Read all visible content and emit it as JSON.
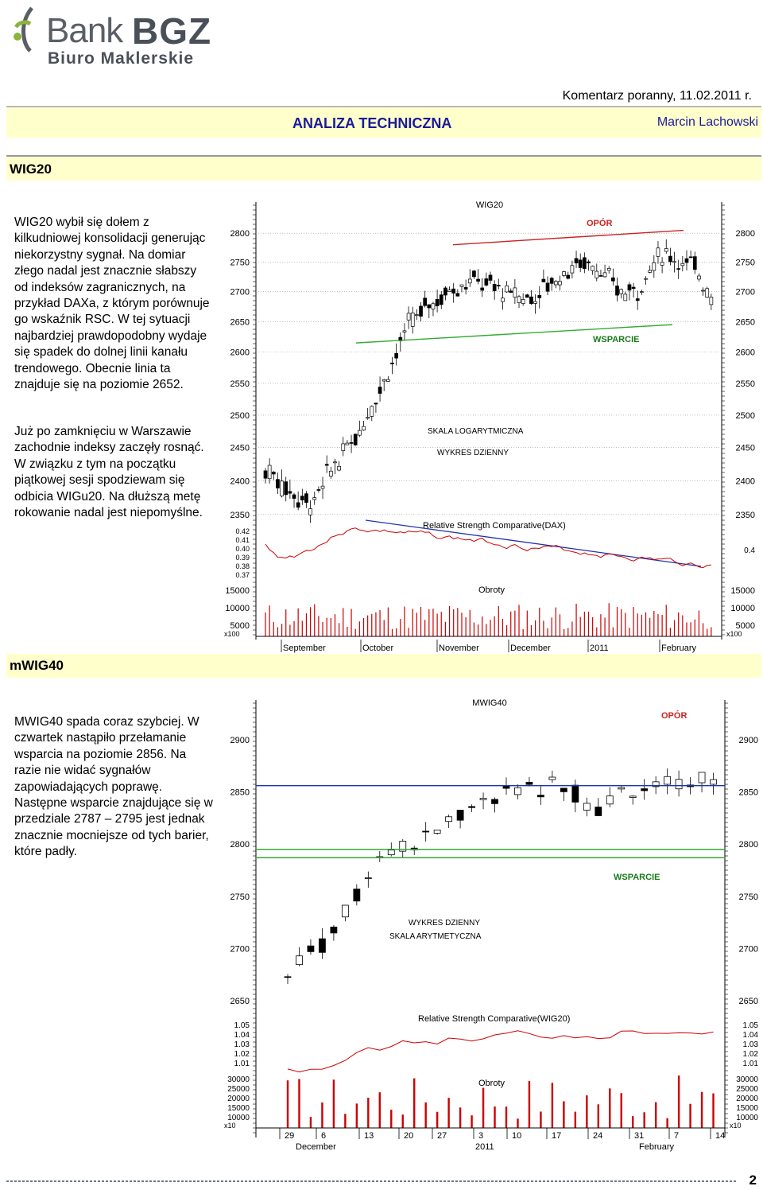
{
  "header": {
    "logo_main": "Bank",
    "logo_brand": "BGZ",
    "logo_sub": "Biuro Maklerskie",
    "comment_label": "Komentarz poranny, 11.02.2011 r.",
    "section_title": "ANALIZA TECHNICZNA",
    "author": "Marcin Lachowski",
    "accent_color": "#1a1a9c",
    "band_color": "#ffffcc"
  },
  "wig20": {
    "section_label": "WIG20",
    "paragraph1": "WIG20 wybił się dołem z kilkudniowej konsolidacji generując niekorzystny sygnał. Na domiar złego nadal jest znacznie słabszy od indeksów zagranicznych, na przykład DAXa, z którym porównuje go wskaźnik RSC. W tej sytuacji najbardziej prawdopodobny wydaje się spadek do dolnej linii kanału trendowego. Obecnie linia ta znajduje się na poziomie 2652.",
    "paragraph2": "Już po zamknięciu w Warszawie zachodnie indeksy zaczęły rosnąć. W związku z tym na początku piątkowej sesji spodziewam się odbicia WIGu20. Na dłuższą metę rokowanie nadal jest niepomyślne."
  },
  "mwig40": {
    "section_label": "mWIG40",
    "paragraph1": "MWIG40 spada coraz szybciej. W czwartek nastąpiło przełamanie wsparcia na poziomie 2856. Na razie nie widać sygnałów zapowiadających poprawę. Następne wsparcie znajdujące się w przedziale 2787 – 2795 jest jednak znacznie mocniejsze od tych barier, które padły."
  },
  "chart_data": [
    {
      "type": "candlestick",
      "title": "WIG20",
      "scale": "log",
      "price_ticks": [
        2800,
        2750,
        2700,
        2650,
        2600,
        2550,
        2500,
        2450,
        2400,
        2350
      ],
      "annotations": [
        "OPÓR",
        "WSPARCIE",
        "SKALA LOGARYTMICZNA",
        "WYKRES DZIENNY"
      ],
      "resistance_line": [
        2780,
        2805
      ],
      "support_line": [
        2615,
        2645
      ],
      "rsc_title": "Relative Strength Comparative(DAX)",
      "rsc_ticks_left": [
        "0.42",
        "0.41",
        "0.40",
        "0.39",
        "0.38",
        "0.37"
      ],
      "rsc_ticks_right": [
        "0.4"
      ],
      "volume_title": "Obroty",
      "volume_ticks": [
        "15000",
        "10000",
        "5000"
      ],
      "volume_multiplier": "x100",
      "months": [
        "September",
        "October",
        "November",
        "December",
        "2011",
        "February"
      ],
      "colors": {
        "resistance": "#cc2222",
        "support": "#33aa33",
        "rsc_trend": "#2233aa",
        "rsc_line": "#cc0000",
        "opor_text": "#cc2222",
        "wsparcie_text": "#1a7a1a"
      }
    },
    {
      "type": "candlestick",
      "title": "MWIG40",
      "scale": "linear",
      "price_ticks": [
        2900,
        2850,
        2800,
        2750,
        2700,
        2650
      ],
      "annotations": [
        "OPÓR",
        "WSPARCIE",
        "WYKRES DZIENNY",
        "SKALA ARYTMETYCZNA"
      ],
      "levels": {
        "blue": 2856,
        "green_upper": 2795,
        "green_lower": 2787
      },
      "rsc_title": "Relative Strength Comparative(WIG20)",
      "rsc_ticks": [
        "1.05",
        "1.04",
        "1.03",
        "1.02",
        "1.01"
      ],
      "volume_title": "Obroty",
      "volume_ticks": [
        "30000",
        "25000",
        "20000",
        "15000",
        "10000"
      ],
      "volume_multiplier": "x10",
      "days": [
        "29",
        "6",
        "13",
        "20",
        "27",
        "3",
        "10",
        "17",
        "24",
        "31",
        "7",
        "14"
      ],
      "months": [
        "December",
        "2011",
        "February"
      ],
      "colors": {
        "blue_line": "#2233aa",
        "green_line": "#33aa33",
        "rsc_line": "#cc0000",
        "opor_text": "#cc2222",
        "wsparcie_text": "#1a7a1a"
      }
    }
  ],
  "page_number": "2"
}
